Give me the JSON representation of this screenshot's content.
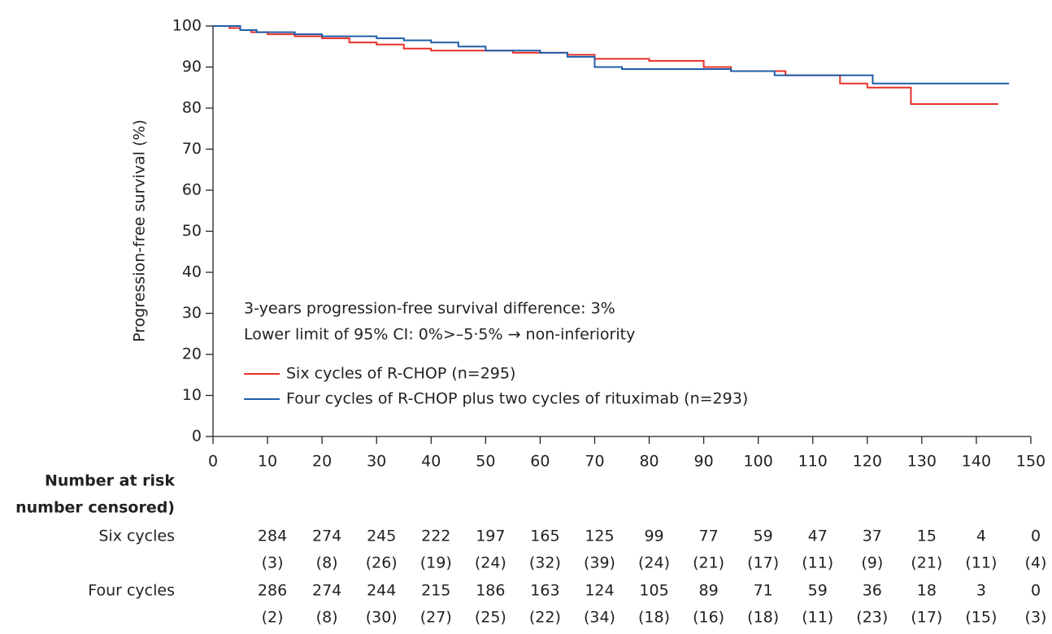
{
  "chart_data": {
    "type": "step",
    "ylabel": "Progression-free survival (%)",
    "xlim": [
      0,
      150
    ],
    "xticks": [
      0,
      10,
      20,
      30,
      40,
      50,
      60,
      70,
      80,
      90,
      100,
      110,
      120,
      130,
      140,
      150
    ],
    "ylim": [
      0,
      100
    ],
    "yticks": [
      0,
      10,
      20,
      30,
      40,
      50,
      60,
      70,
      80,
      90,
      100
    ],
    "annotations": [
      "3-years progression-free survival difference: 3%",
      "Lower limit of 95% CI: 0%>–5·5% → non-inferiority"
    ],
    "series": [
      {
        "name": "Six cycles of R-CHOP (n=295)",
        "color": "#e8302a",
        "x": [
          0,
          3,
          5,
          7,
          10,
          15,
          20,
          25,
          30,
          35,
          40,
          55,
          65,
          70,
          80,
          90,
          95,
          105,
          115,
          120,
          128,
          144
        ],
        "values": [
          100,
          99.5,
          99,
          98.5,
          98,
          97.5,
          97,
          96,
          95.5,
          94.5,
          94,
          93.5,
          93,
          92,
          91.5,
          90,
          89,
          88,
          86,
          85,
          81,
          81
        ]
      },
      {
        "name": "Four cycles of R-CHOP plus two cycles of rituximab (n=293)",
        "color": "#1f5fa8",
        "x": [
          0,
          5,
          8,
          15,
          20,
          30,
          35,
          40,
          45,
          50,
          60,
          65,
          70,
          75,
          95,
          103,
          121,
          146
        ],
        "values": [
          100,
          99,
          98.5,
          98,
          97.5,
          97,
          96.5,
          96,
          95,
          94,
          93.5,
          92.5,
          90,
          89.5,
          89,
          88,
          86,
          86
        ]
      }
    ],
    "risk_table": {
      "title": "Number at risk",
      "subtitle": "number censored)",
      "times": [
        10,
        20,
        30,
        40,
        50,
        60,
        70,
        80,
        90,
        100,
        110,
        120,
        130,
        140,
        150
      ],
      "rows": [
        {
          "label": "Six cycles",
          "at_risk": [
            284,
            274,
            245,
            222,
            197,
            165,
            125,
            99,
            77,
            59,
            47,
            37,
            15,
            4,
            0
          ],
          "censored": [
            "(3)",
            "(8)",
            "(26)",
            "(19)",
            "(24)",
            "(32)",
            "(39)",
            "(24)",
            "(21)",
            "(17)",
            "(11)",
            "(9)",
            "(21)",
            "(11)",
            "(4)"
          ]
        },
        {
          "label": "Four cycles",
          "at_risk": [
            286,
            274,
            244,
            215,
            186,
            163,
            124,
            105,
            89,
            71,
            59,
            36,
            18,
            3,
            0
          ],
          "censored": [
            "(2)",
            "(8)",
            "(30)",
            "(27)",
            "(25)",
            "(22)",
            "(34)",
            "(18)",
            "(16)",
            "(18)",
            "(11)",
            "(23)",
            "(17)",
            "(15)",
            "(3)"
          ]
        }
      ]
    }
  }
}
